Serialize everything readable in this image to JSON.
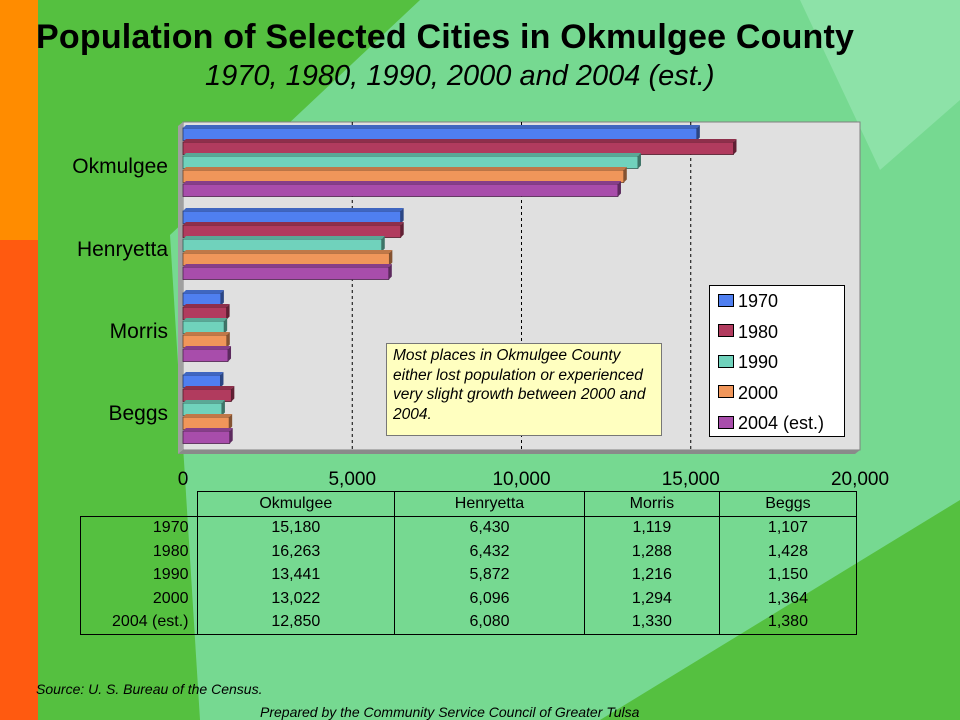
{
  "colors": {
    "background": "#55c040",
    "diamond": "#7ddda0",
    "left_orange": "#ff8c00",
    "left_red_orange": "#ff5a10",
    "plot_area": "#e0e0e0",
    "series": [
      "#4f7ff0",
      "#b13b5e",
      "#70d2bc",
      "#f0965a",
      "#a84dab"
    ]
  },
  "title": "Population of Selected Cities in Okmulgee County",
  "subtitle": "1970, 1980, 1990, 2000 and 2004 (est.)",
  "chart_data": {
    "type": "bar",
    "orientation": "horizontal",
    "categories": [
      "Okmulgee",
      "Henryetta",
      "Morris",
      "Beggs"
    ],
    "series": [
      {
        "name": "1970",
        "values": [
          15180,
          6430,
          1119,
          1107
        ]
      },
      {
        "name": "1980",
        "values": [
          16263,
          6432,
          1288,
          1428
        ]
      },
      {
        "name": "1990",
        "values": [
          13441,
          5872,
          1216,
          1150
        ]
      },
      {
        "name": "2000",
        "values": [
          13022,
          6096,
          1294,
          1364
        ]
      },
      {
        "name": "2004 (est.)",
        "values": [
          12850,
          6080,
          1330,
          1380
        ]
      }
    ],
    "xlim": [
      0,
      20000
    ],
    "xticks": [
      "0",
      "5,000",
      "10,000",
      "15,000",
      "20,000"
    ],
    "grid": "vertical dashed",
    "legend_position": "right"
  },
  "annotation": "Most places in Okmulgee County either lost population or experienced very slight growth between 2000 and 2004.",
  "table": {
    "headers": [
      "Okmulgee",
      "Henryetta",
      "Morris",
      "Beggs"
    ],
    "rows": [
      {
        "label": "1970",
        "values": [
          "15,180",
          "6,430",
          "1,119",
          "1,107"
        ]
      },
      {
        "label": "1980",
        "values": [
          "16,263",
          "6,432",
          "1,288",
          "1,428"
        ]
      },
      {
        "label": "1990",
        "values": [
          "13,441",
          "5,872",
          "1,216",
          "1,150"
        ]
      },
      {
        "label": "2000",
        "values": [
          "13,022",
          "6,096",
          "1,294",
          "1,364"
        ]
      },
      {
        "label": "2004 (est.)",
        "values": [
          "12,850",
          "6,080",
          "1,330",
          "1,380"
        ]
      }
    ]
  },
  "source": "Source:  U. S. Bureau of the Census.",
  "prepared_by": "Prepared by the Community Service Council of Greater Tulsa"
}
